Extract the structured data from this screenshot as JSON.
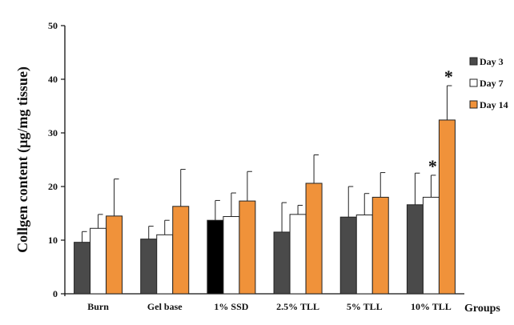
{
  "chart_data": {
    "type": "bar",
    "title": "",
    "xlabel": "Groups",
    "ylabel": "Collgen content (µg/mg tissue)",
    "ylim": [
      0,
      50
    ],
    "yticks": [
      0,
      10,
      20,
      30,
      40,
      50
    ],
    "grid": false,
    "legend_position": "right",
    "categories": [
      "Burn",
      "Gel base",
      "1% SSD",
      "2.5% TLL",
      "5% TLL",
      "10% TLL"
    ],
    "series": [
      {
        "name": "Day 3",
        "color": "#4a4a4a",
        "values": [
          9.6,
          10.2,
          13.7,
          11.5,
          14.3,
          16.6
        ],
        "errors": [
          2.0,
          2.4,
          3.7,
          5.5,
          5.7,
          5.9
        ]
      },
      {
        "name": "Day 7",
        "color": "#ffffff",
        "values": [
          12.2,
          11.0,
          14.4,
          14.8,
          14.7,
          18.0
        ],
        "errors": [
          2.6,
          2.7,
          4.4,
          1.7,
          4.0,
          4.1
        ]
      },
      {
        "name": "Day 14",
        "color": "#f0923a",
        "values": [
          14.5,
          16.3,
          17.3,
          20.6,
          18.0,
          32.4
        ],
        "errors": [
          6.9,
          6.9,
          5.5,
          5.3,
          4.6,
          6.4
        ]
      }
    ],
    "bar_color_overrides": [
      {
        "category_index": 2,
        "series_index": 0,
        "color": "#000000"
      }
    ],
    "significance_markers": [
      {
        "category_index": 5,
        "series_index": 1,
        "label": "*"
      },
      {
        "category_index": 5,
        "series_index": 2,
        "label": "*"
      }
    ]
  }
}
